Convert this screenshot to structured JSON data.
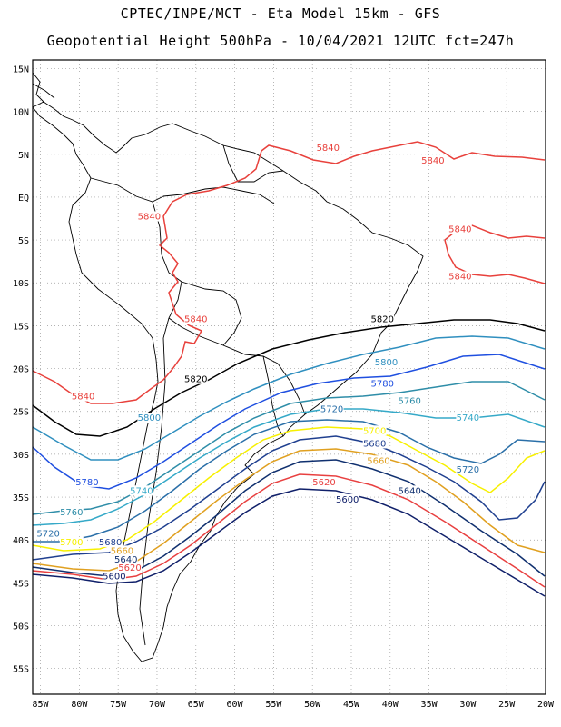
{
  "title_line1": "CPTEC/INPE/MCT -  Eta Model 15km - GFS",
  "title_line2": "Geopotential Height 500hPa - 10/04/2021 12UTC fct=247h",
  "lat_labels": [
    "15N",
    "10N",
    "5N",
    "EQ",
    "5S",
    "10S",
    "15S",
    "20S",
    "25S",
    "30S",
    "35S",
    "40S",
    "45S",
    "50S",
    "55S"
  ],
  "lat_values": [
    15,
    10,
    5,
    0,
    -5,
    -10,
    -15,
    -20,
    -25,
    -30,
    -35,
    -40,
    -45,
    -50,
    -55
  ],
  "lon_labels": [
    "85W",
    "80W",
    "75W",
    "70W",
    "65W",
    "60W",
    "55W",
    "50W",
    "45W",
    "40W",
    "35W",
    "30W",
    "25W",
    "20W"
  ],
  "lon_values": [
    -85,
    -80,
    -75,
    -70,
    -65,
    -60,
    -55,
    -50,
    -45,
    -40,
    -35,
    -30,
    -25,
    -20
  ],
  "extent": {
    "lon_min": -86,
    "lon_max": -20,
    "lat_min": -58,
    "lat_max": 16
  },
  "contour_colors": {
    "5840": "#e8413c",
    "5820": "#000000",
    "5800": "#2f8fbf",
    "5780": "#1f4fe0",
    "5760": "#2e8da8",
    "5740": "#35a9c8",
    "5720": "#2a6fa8",
    "5700": "#f7f000",
    "5680": "#1f3f8f",
    "5660": "#e0a020",
    "5640": "#10306f",
    "5620": "#e84040",
    "5600": "#10206a"
  },
  "contour_labels": [
    {
      "text": "5840",
      "lon": -48,
      "lat": 5.5
    },
    {
      "text": "5840",
      "lon": -34.5,
      "lat": 4
    },
    {
      "text": "5840",
      "lon": -71,
      "lat": -2.5
    },
    {
      "text": "5840",
      "lon": -31,
      "lat": -4
    },
    {
      "text": "5840",
      "lon": -31,
      "lat": -9.5
    },
    {
      "text": "5840",
      "lon": -65,
      "lat": -14.5
    },
    {
      "text": "5840",
      "lon": -79.5,
      "lat": -23.5
    },
    {
      "text": "5820",
      "lon": -41,
      "lat": -14.5
    },
    {
      "text": "5820",
      "lon": -65,
      "lat": -21.5
    },
    {
      "text": "5800",
      "lon": -40.5,
      "lat": -19.5
    },
    {
      "text": "5800",
      "lon": -71,
      "lat": -26
    },
    {
      "text": "5780",
      "lon": -41,
      "lat": -22
    },
    {
      "text": "5780",
      "lon": -79,
      "lat": -33.5
    },
    {
      "text": "5760",
      "lon": -37.5,
      "lat": -24
    },
    {
      "text": "5760",
      "lon": -81,
      "lat": -37
    },
    {
      "text": "5740",
      "lon": -30,
      "lat": -26
    },
    {
      "text": "5740",
      "lon": -72,
      "lat": -34.5
    },
    {
      "text": "5720",
      "lon": -47.5,
      "lat": -25
    },
    {
      "text": "5720",
      "lon": -30,
      "lat": -32
    },
    {
      "text": "5720",
      "lon": -84,
      "lat": -39.5
    },
    {
      "text": "5700",
      "lon": -42,
      "lat": -27.5
    },
    {
      "text": "5700",
      "lon": -81,
      "lat": -40.5
    },
    {
      "text": "5680",
      "lon": -42,
      "lat": -29
    },
    {
      "text": "5680",
      "lon": -76,
      "lat": -40.5
    },
    {
      "text": "5660",
      "lon": -41.5,
      "lat": -31
    },
    {
      "text": "5660",
      "lon": -74.5,
      "lat": -41.5
    },
    {
      "text": "5640",
      "lon": -37.5,
      "lat": -34.5
    },
    {
      "text": "5640",
      "lon": -74,
      "lat": -42.5
    },
    {
      "text": "5620",
      "lon": -48.5,
      "lat": -33.5
    },
    {
      "text": "5620",
      "lon": -73.5,
      "lat": -43.5
    },
    {
      "text": "5600",
      "lon": -45.5,
      "lat": -35.5
    },
    {
      "text": "5600",
      "lon": -75.5,
      "lat": -44.5
    }
  ]
}
